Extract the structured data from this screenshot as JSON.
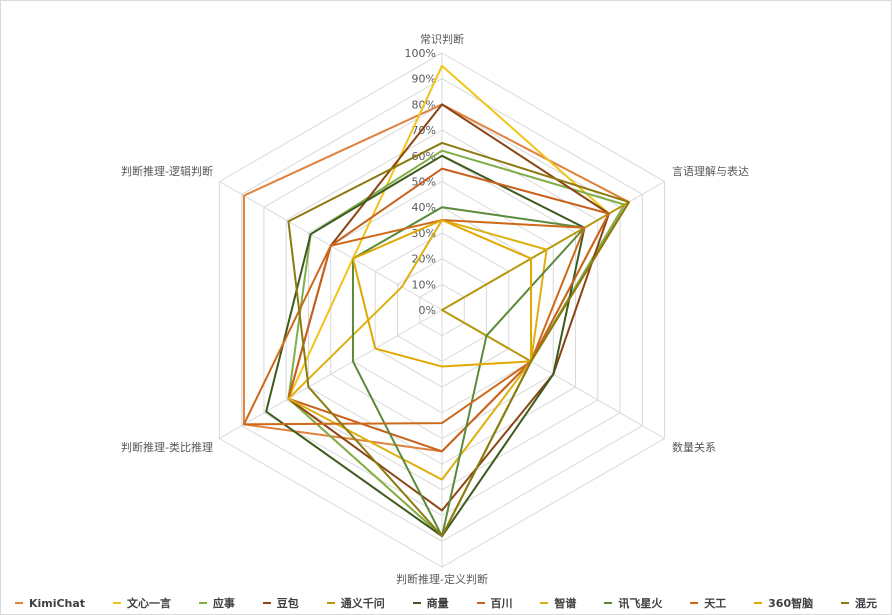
{
  "chart_data": {
    "type": "radar",
    "title": "",
    "categories": [
      "常识判断",
      "言语理解与表达",
      "数量关系",
      "判断推理-定义判断",
      "判断推理-类比推理",
      "判断推理-逻辑判断"
    ],
    "rlim": [
      0,
      100
    ],
    "tick_labels": [
      "0%",
      "10%",
      "20%",
      "30%",
      "40%",
      "50%",
      "60%",
      "70%",
      "80%",
      "90%",
      "100%"
    ],
    "grid": true,
    "legend_position": "bottom",
    "series": [
      {
        "name": "KimiChat",
        "color": "#E0823D",
        "values": [
          80,
          84,
          40,
          55,
          89,
          89
        ]
      },
      {
        "name": "文心一言",
        "color": "#F2C318",
        "values": [
          95,
          75,
          40,
          88,
          69,
          40
        ]
      },
      {
        "name": "应事",
        "color": "#7FAE4A",
        "values": [
          62,
          82,
          40,
          88,
          69,
          59
        ]
      },
      {
        "name": "豆包",
        "color": "#8B4513",
        "values": [
          80,
          75,
          50,
          78,
          69,
          50
        ]
      },
      {
        "name": "通义千问",
        "color": "#B8970A",
        "values": [
          0,
          84,
          40,
          0,
          0,
          0
        ]
      },
      {
        "name": "商量",
        "color": "#3E5A1E",
        "values": [
          60,
          64,
          50,
          88,
          79,
          59
        ]
      },
      {
        "name": "百川",
        "color": "#C8601E",
        "values": [
          55,
          75,
          40,
          55,
          69,
          50
        ]
      },
      {
        "name": "智谱",
        "color": "#DDB012",
        "values": [
          35,
          47,
          40,
          66,
          69,
          18
        ]
      },
      {
        "name": "讯飞星火",
        "color": "#5A8A3A",
        "values": [
          40,
          64,
          20,
          88,
          40,
          40
        ]
      },
      {
        "name": "天工",
        "color": "#CC6A1A",
        "values": [
          35,
          64,
          40,
          44,
          89,
          50
        ]
      },
      {
        "name": "360智脑",
        "color": "#E0A800",
        "values": [
          35,
          40,
          40,
          22,
          30,
          40
        ]
      },
      {
        "name": "混元",
        "color": "#8C7A10",
        "values": [
          65,
          84,
          40,
          88,
          60,
          69
        ]
      }
    ]
  },
  "axis_labels": {
    "top": "常识判断",
    "upper_right": "言语理解与表达",
    "lower_right": "数量关系",
    "bottom": "判断推理-定义判断",
    "lower_left": "判断推理-类比推理",
    "upper_left": "判断推理-逻辑判断"
  },
  "legend": [
    {
      "label": "KimiChat",
      "color": "#E0823D"
    },
    {
      "label": "文心一言",
      "color": "#F2C318"
    },
    {
      "label": "应事",
      "color": "#7FAE4A"
    },
    {
      "label": "豆包",
      "color": "#8B4513"
    },
    {
      "label": "通义千问",
      "color": "#B8970A"
    },
    {
      "label": "商量",
      "color": "#3E5A1E"
    },
    {
      "label": "百川",
      "color": "#C8601E"
    },
    {
      "label": "智谱",
      "color": "#DDB012"
    },
    {
      "label": "讯飞星火",
      "color": "#5A8A3A"
    },
    {
      "label": "天工",
      "color": "#CC6A1A"
    },
    {
      "label": "360智脑",
      "color": "#E0A800"
    },
    {
      "label": "混元",
      "color": "#8C7A10"
    }
  ]
}
